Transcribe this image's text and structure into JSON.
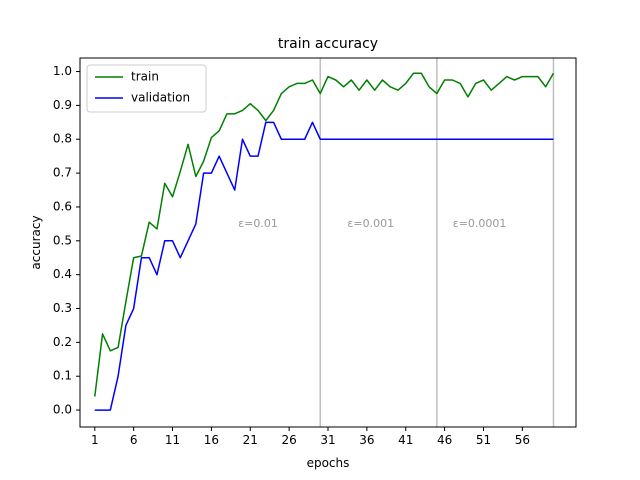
{
  "chart_data": {
    "type": "line",
    "title": "train accuracy",
    "xlabel": "epochs",
    "ylabel": "accuracy",
    "xlim": [
      -0.9,
      62.9
    ],
    "ylim": [
      -0.05,
      1.04
    ],
    "xticks": [
      1,
      6,
      11,
      16,
      21,
      26,
      31,
      36,
      41,
      46,
      51,
      56
    ],
    "yticks": [
      0.0,
      0.1,
      0.2,
      0.3,
      0.4,
      0.5,
      0.6,
      0.7,
      0.8,
      0.9,
      1.0
    ],
    "ytick_labels": [
      "0.0",
      "0.1",
      "0.2",
      "0.3",
      "0.4",
      "0.5",
      "0.6",
      "0.7",
      "0.8",
      "0.9",
      "1.0"
    ],
    "grid": false,
    "legend_position": "top-left",
    "x": [
      1,
      2,
      3,
      4,
      5,
      6,
      7,
      8,
      9,
      10,
      11,
      12,
      13,
      14,
      15,
      16,
      17,
      18,
      19,
      20,
      21,
      22,
      23,
      24,
      25,
      26,
      27,
      28,
      29,
      30,
      31,
      32,
      33,
      34,
      35,
      36,
      37,
      38,
      39,
      40,
      41,
      42,
      43,
      44,
      45,
      46,
      47,
      48,
      49,
      50,
      51,
      52,
      53,
      54,
      55,
      56,
      57,
      58,
      59,
      60
    ],
    "series": [
      {
        "name": "train",
        "color": "#008000",
        "values": [
          0.04,
          0.225,
          0.175,
          0.185,
          0.32,
          0.45,
          0.455,
          0.555,
          0.535,
          0.67,
          0.63,
          0.705,
          0.785,
          0.69,
          0.735,
          0.805,
          0.825,
          0.875,
          0.875,
          0.885,
          0.905,
          0.885,
          0.855,
          0.885,
          0.935,
          0.955,
          0.965,
          0.965,
          0.975,
          0.935,
          0.985,
          0.975,
          0.955,
          0.975,
          0.945,
          0.975,
          0.945,
          0.975,
          0.955,
          0.945,
          0.965,
          0.995,
          0.995,
          0.955,
          0.935,
          0.975,
          0.975,
          0.965,
          0.925,
          0.965,
          0.975,
          0.945,
          0.965,
          0.985,
          0.975,
          0.985,
          0.985,
          0.985,
          0.955,
          0.995
        ]
      },
      {
        "name": "validation",
        "color": "#0000ff",
        "values": [
          0.0,
          0.0,
          0.0,
          0.1,
          0.25,
          0.3,
          0.45,
          0.45,
          0.4,
          0.5,
          0.5,
          0.45,
          0.5,
          0.55,
          0.7,
          0.7,
          0.75,
          0.7,
          0.65,
          0.8,
          0.75,
          0.75,
          0.85,
          0.85,
          0.8,
          0.8,
          0.8,
          0.8,
          0.85,
          0.8,
          0.8,
          0.8,
          0.8,
          0.8,
          0.8,
          0.8,
          0.8,
          0.8,
          0.8,
          0.8,
          0.8,
          0.8,
          0.8,
          0.8,
          0.8,
          0.8,
          0.8,
          0.8,
          0.8,
          0.8,
          0.8,
          0.8,
          0.8,
          0.8,
          0.8,
          0.8,
          0.8,
          0.8,
          0.8,
          0.8
        ]
      }
    ],
    "vlines": [
      30,
      45,
      60
    ],
    "annotations": [
      {
        "text": "ε=0.01",
        "x": 22,
        "y": 0.55
      },
      {
        "text": "ε=0.001",
        "x": 36.5,
        "y": 0.55
      },
      {
        "text": "ε=0.0001",
        "x": 50.5,
        "y": 0.55
      }
    ],
    "colors": {
      "vline": "#bfbfbf",
      "annotation": "#999999",
      "axes": "#000000"
    }
  }
}
